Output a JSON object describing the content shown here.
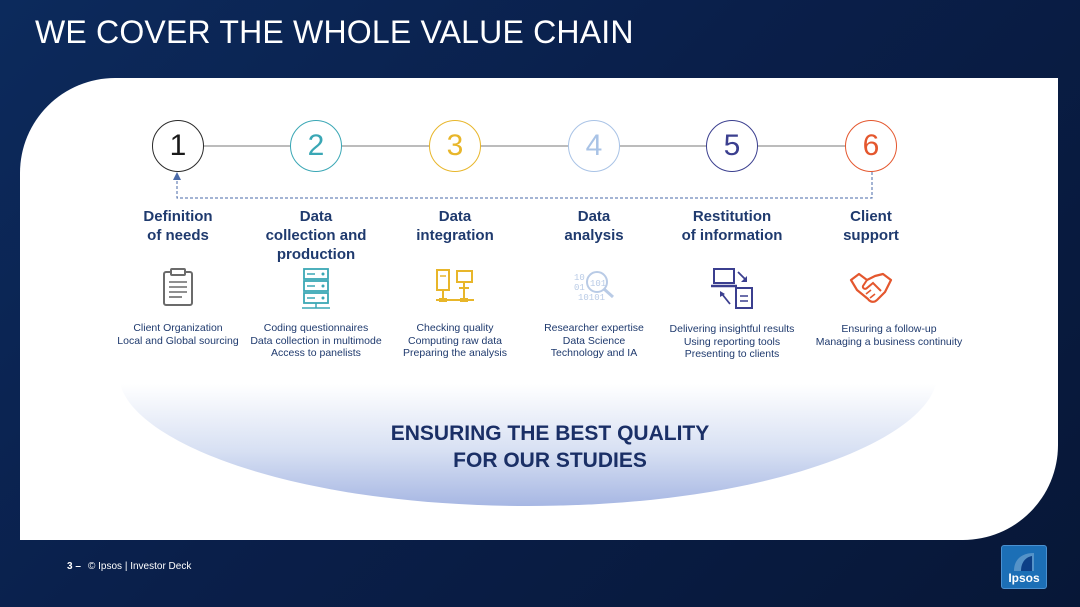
{
  "title": "WE COVER THE WHOLE VALUE CHAIN",
  "steps": [
    {
      "number": "1",
      "label": "Definition\nof needs",
      "icon": "clipboard-icon",
      "description": "Client Organization\nLocal and Global sourcing",
      "color": "#2a2a2a"
    },
    {
      "number": "2",
      "label": "Data\ncollection and\nproduction",
      "icon": "server-icon",
      "description": "Coding questionnaires\nData collection in multimode\nAccess to panelists",
      "color": "#3aa7b5"
    },
    {
      "number": "3",
      "label": "Data\nintegration",
      "icon": "network-computers-icon",
      "description": "Checking quality\nComputing raw data\nPreparing the analysis",
      "color": "#e8b62a"
    },
    {
      "number": "4",
      "label": "Data\nanalysis",
      "icon": "binary-magnifier-icon",
      "description": "Researcher expertise\nData Science\nTechnology and IA",
      "color": "#a9c3e6"
    },
    {
      "number": "5",
      "label": "Restitution\nof information",
      "icon": "laptop-document-icon",
      "description": "Delivering insightful results\nUsing reporting tools\nPresenting to clients",
      "color": "#3b3f8f"
    },
    {
      "number": "6",
      "label": "Client\nsupport",
      "icon": "handshake-icon",
      "description": "Ensuring a follow-up\nManaging a business continuity",
      "color": "#e4572e"
    }
  ],
  "quality_banner": "ENSURING THE BEST QUALITY\nFOR OUR STUDIES",
  "footer": {
    "page_number": "3 –",
    "text": "© Ipsos | Investor Deck"
  },
  "logo_text": "Ipsos"
}
